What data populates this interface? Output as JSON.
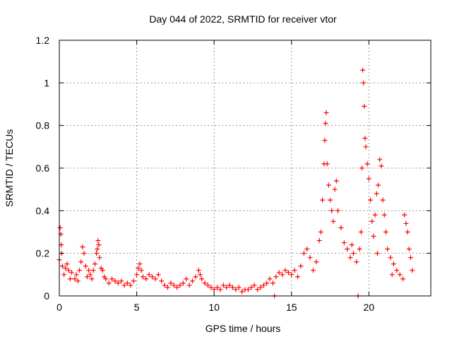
{
  "chart_data": {
    "type": "scatter",
    "title": "Day 044 of 2022, SRMTID for receiver vtor",
    "xlabel": "GPS time / hours",
    "ylabel": "SRMTID / TECUs",
    "xlim": [
      0,
      24
    ],
    "ylim": [
      0,
      1.2
    ],
    "xticks": [
      0,
      5,
      10,
      15,
      20
    ],
    "xtick_labels": [
      "0",
      "5",
      "10",
      "15",
      "20"
    ],
    "yticks": [
      0,
      0.2,
      0.4,
      0.6,
      0.8,
      1.0,
      1.2
    ],
    "ytick_labels": [
      "0",
      "0.2",
      "0.4",
      "0.6",
      "0.8",
      "1",
      "1.2"
    ],
    "grid": true,
    "marker": "+",
    "color": "#ff0000",
    "series": [
      {
        "name": "SRMTID",
        "points": [
          [
            0.0,
            0.17
          ],
          [
            0.05,
            0.32
          ],
          [
            0.1,
            0.29
          ],
          [
            0.12,
            0.24
          ],
          [
            0.15,
            0.2
          ],
          [
            0.2,
            0.14
          ],
          [
            0.3,
            0.1
          ],
          [
            0.4,
            0.13
          ],
          [
            0.5,
            0.15
          ],
          [
            0.6,
            0.12
          ],
          [
            0.7,
            0.08
          ],
          [
            0.8,
            0.11
          ],
          [
            1.0,
            0.08
          ],
          [
            1.1,
            0.1
          ],
          [
            1.2,
            0.07
          ],
          [
            1.3,
            0.12
          ],
          [
            1.4,
            0.16
          ],
          [
            1.5,
            0.23
          ],
          [
            1.6,
            0.2
          ],
          [
            1.7,
            0.14
          ],
          [
            1.8,
            0.09
          ],
          [
            1.9,
            0.12
          ],
          [
            2.0,
            0.1
          ],
          [
            2.1,
            0.08
          ],
          [
            2.2,
            0.12
          ],
          [
            2.3,
            0.15
          ],
          [
            2.4,
            0.2
          ],
          [
            2.45,
            0.22
          ],
          [
            2.5,
            0.26
          ],
          [
            2.55,
            0.24
          ],
          [
            2.6,
            0.18
          ],
          [
            2.7,
            0.13
          ],
          [
            2.8,
            0.12
          ],
          [
            2.9,
            0.09
          ],
          [
            3.0,
            0.08
          ],
          [
            3.2,
            0.06
          ],
          [
            3.4,
            0.08
          ],
          [
            3.6,
            0.07
          ],
          [
            3.8,
            0.06
          ],
          [
            4.0,
            0.07
          ],
          [
            4.2,
            0.05
          ],
          [
            4.4,
            0.06
          ],
          [
            4.6,
            0.05
          ],
          [
            4.8,
            0.07
          ],
          [
            5.0,
            0.1
          ],
          [
            5.1,
            0.13
          ],
          [
            5.2,
            0.15
          ],
          [
            5.3,
            0.12
          ],
          [
            5.4,
            0.09
          ],
          [
            5.6,
            0.08
          ],
          [
            5.8,
            0.1
          ],
          [
            6.0,
            0.09
          ],
          [
            6.2,
            0.08
          ],
          [
            6.4,
            0.1
          ],
          [
            6.6,
            0.07
          ],
          [
            6.8,
            0.05
          ],
          [
            7.0,
            0.04
          ],
          [
            7.2,
            0.06
          ],
          [
            7.4,
            0.05
          ],
          [
            7.6,
            0.04
          ],
          [
            7.8,
            0.05
          ],
          [
            8.0,
            0.06
          ],
          [
            8.2,
            0.08
          ],
          [
            8.4,
            0.05
          ],
          [
            8.6,
            0.07
          ],
          [
            8.8,
            0.09
          ],
          [
            9.0,
            0.12
          ],
          [
            9.1,
            0.1
          ],
          [
            9.2,
            0.08
          ],
          [
            9.4,
            0.06
          ],
          [
            9.6,
            0.05
          ],
          [
            9.8,
            0.04
          ],
          [
            10.0,
            0.03
          ],
          [
            10.2,
            0.04
          ],
          [
            10.4,
            0.03
          ],
          [
            10.6,
            0.05
          ],
          [
            10.8,
            0.04
          ],
          [
            11.0,
            0.05
          ],
          [
            11.2,
            0.04
          ],
          [
            11.4,
            0.03
          ],
          [
            11.6,
            0.04
          ],
          [
            11.8,
            0.02
          ],
          [
            12.0,
            0.03
          ],
          [
            12.2,
            0.03
          ],
          [
            12.4,
            0.04
          ],
          [
            12.6,
            0.05
          ],
          [
            12.8,
            0.03
          ],
          [
            13.0,
            0.04
          ],
          [
            13.2,
            0.05
          ],
          [
            13.4,
            0.06
          ],
          [
            13.6,
            0.08
          ],
          [
            13.8,
            0.06
          ],
          [
            13.9,
            0.0
          ],
          [
            14.0,
            0.09
          ],
          [
            14.2,
            0.11
          ],
          [
            14.4,
            0.1
          ],
          [
            14.6,
            0.12
          ],
          [
            14.8,
            0.11
          ],
          [
            15.0,
            0.1
          ],
          [
            15.2,
            0.12
          ],
          [
            15.4,
            0.09
          ],
          [
            15.6,
            0.14
          ],
          [
            15.8,
            0.2
          ],
          [
            16.0,
            0.22
          ],
          [
            16.2,
            0.18
          ],
          [
            16.4,
            0.12
          ],
          [
            16.6,
            0.16
          ],
          [
            16.8,
            0.26
          ],
          [
            16.9,
            0.3
          ],
          [
            17.0,
            0.45
          ],
          [
            17.1,
            0.62
          ],
          [
            17.15,
            0.73
          ],
          [
            17.2,
            0.81
          ],
          [
            17.25,
            0.86
          ],
          [
            17.3,
            0.62
          ],
          [
            17.4,
            0.52
          ],
          [
            17.5,
            0.45
          ],
          [
            17.6,
            0.4
          ],
          [
            17.7,
            0.35
          ],
          [
            17.8,
            0.5
          ],
          [
            17.9,
            0.54
          ],
          [
            18.0,
            0.4
          ],
          [
            18.2,
            0.32
          ],
          [
            18.4,
            0.25
          ],
          [
            18.6,
            0.22
          ],
          [
            18.8,
            0.18
          ],
          [
            19.0,
            0.2
          ],
          [
            19.2,
            0.16
          ],
          [
            19.4,
            0.22
          ],
          [
            19.5,
            0.3
          ],
          [
            19.55,
            0.6
          ],
          [
            19.6,
            1.06
          ],
          [
            19.65,
            1.0
          ],
          [
            19.7,
            0.89
          ],
          [
            19.75,
            0.74
          ],
          [
            19.8,
            0.7
          ],
          [
            19.9,
            0.62
          ],
          [
            20.0,
            0.55
          ],
          [
            20.1,
            0.45
          ],
          [
            20.2,
            0.35
          ],
          [
            20.3,
            0.28
          ],
          [
            20.4,
            0.38
          ],
          [
            20.5,
            0.48
          ],
          [
            20.6,
            0.52
          ],
          [
            20.7,
            0.64
          ],
          [
            20.8,
            0.61
          ],
          [
            20.9,
            0.45
          ],
          [
            21.0,
            0.38
          ],
          [
            21.1,
            0.3
          ],
          [
            21.2,
            0.22
          ],
          [
            21.4,
            0.18
          ],
          [
            21.6,
            0.15
          ],
          [
            21.8,
            0.12
          ],
          [
            22.0,
            0.1
          ],
          [
            22.2,
            0.08
          ],
          [
            22.3,
            0.38
          ],
          [
            22.4,
            0.34
          ],
          [
            22.5,
            0.3
          ],
          [
            22.6,
            0.22
          ],
          [
            22.7,
            0.18
          ],
          [
            22.8,
            0.12
          ],
          [
            19.3,
            0.0
          ],
          [
            18.9,
            0.24
          ],
          [
            20.55,
            0.2
          ],
          [
            21.5,
            0.1
          ]
        ]
      }
    ]
  }
}
